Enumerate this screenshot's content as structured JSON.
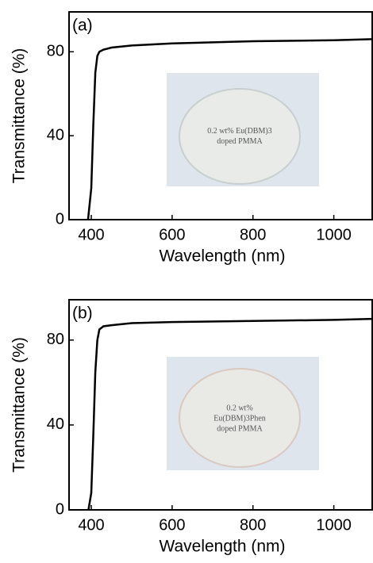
{
  "chart_data": [
    {
      "type": "line",
      "annotation": "(a)",
      "xlabel": "Wavelength (nm)",
      "ylabel": "Transmittance (%)",
      "inset_text": [
        "0.2 wt% Eu(DBM)3",
        "doped PMMA"
      ],
      "xlim": [
        345,
        1095
      ],
      "ylim": [
        0,
        99
      ],
      "xticks": [
        400,
        600,
        800,
        1000
      ],
      "yticks": [
        0,
        40,
        80
      ],
      "series": [
        {
          "color": "#000000",
          "x": [
            392,
            400,
            405,
            410,
            415,
            420,
            430,
            450,
            500,
            600,
            800,
            1000,
            1095
          ],
          "values": [
            0,
            15,
            45,
            70,
            78,
            80,
            81,
            82,
            83,
            84,
            85,
            85.5,
            86
          ]
        }
      ]
    },
    {
      "type": "line",
      "annotation": "(b)",
      "xlabel": "Wavelength (nm)",
      "ylabel": "Transmittance (%)",
      "inset_text": [
        "0.2 wt%",
        "Eu(DBM)3Phen",
        "doped PMMA"
      ],
      "xlim": [
        345,
        1095
      ],
      "ylim": [
        0,
        99
      ],
      "xticks": [
        400,
        600,
        800,
        1000
      ],
      "yticks": [
        0,
        40,
        80
      ],
      "series": [
        {
          "color": "#000000",
          "x": [
            393,
            400,
            405,
            410,
            415,
            420,
            430,
            450,
            500,
            600,
            800,
            1000,
            1095
          ],
          "values": [
            0,
            8,
            35,
            65,
            80,
            85,
            86.5,
            87,
            88,
            88.5,
            89,
            89.5,
            90
          ]
        }
      ]
    }
  ]
}
